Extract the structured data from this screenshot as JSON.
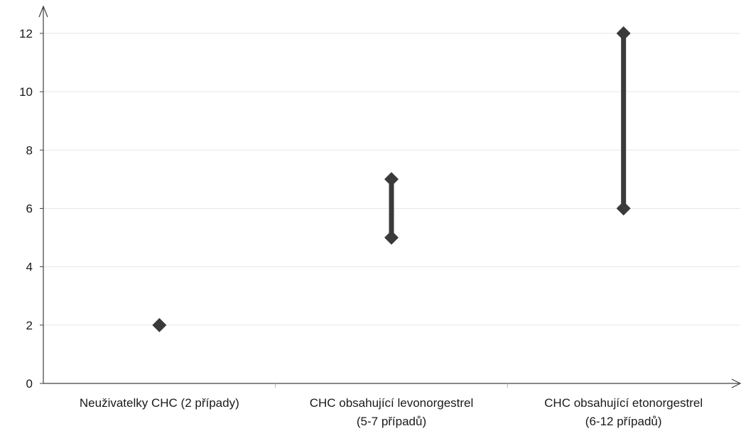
{
  "chart_data": {
    "type": "range",
    "categories": [
      [
        "Neuživatelky CHC (2 případy)"
      ],
      [
        "CHC obsahující levonorgestrel",
        "(5-7 případů)"
      ],
      [
        "CHC obsahující etonorgestrel",
        "(6-12 případů)"
      ]
    ],
    "series": [
      {
        "low": [
          2,
          5,
          6
        ],
        "high": [
          2,
          7,
          12
        ]
      }
    ],
    "ylim": [
      0,
      12
    ],
    "yticks": [
      0,
      2,
      4,
      6,
      8,
      10,
      12
    ],
    "ytick_labels": [
      "0",
      "2",
      "4",
      "6",
      "8",
      "10",
      "12"
    ],
    "title": "",
    "xlabel": "",
    "ylabel": "",
    "grid": true,
    "legend": "none",
    "colors": {
      "marker": "#3a3a3a",
      "grid": "#e6e6e6",
      "axis": "#404040"
    }
  }
}
